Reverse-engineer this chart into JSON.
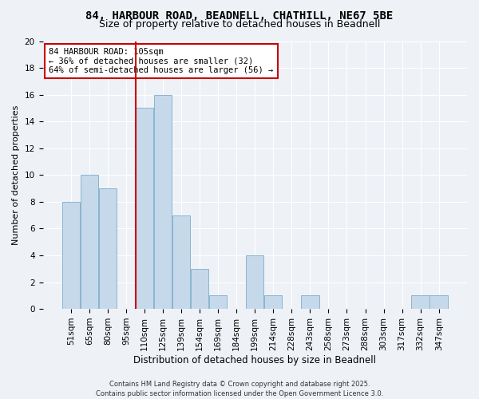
{
  "title": "84, HARBOUR ROAD, BEADNELL, CHATHILL, NE67 5BE",
  "subtitle": "Size of property relative to detached houses in Beadnell",
  "xlabel": "Distribution of detached houses by size in Beadnell",
  "ylabel": "Number of detached properties",
  "categories": [
    "51sqm",
    "65sqm",
    "80sqm",
    "95sqm",
    "110sqm",
    "125sqm",
    "139sqm",
    "154sqm",
    "169sqm",
    "184sqm",
    "199sqm",
    "214sqm",
    "228sqm",
    "243sqm",
    "258sqm",
    "273sqm",
    "288sqm",
    "303sqm",
    "317sqm",
    "332sqm",
    "347sqm"
  ],
  "values": [
    8,
    10,
    9,
    0,
    15,
    16,
    7,
    3,
    1,
    0,
    4,
    1,
    0,
    1,
    0,
    0,
    0,
    0,
    0,
    1,
    1
  ],
  "bar_color": "#c6d9ea",
  "bar_edge_color": "#8ab4d0",
  "vline_color": "#cc0000",
  "vline_position": 3.5,
  "annotation_text": "84 HARBOUR ROAD: 105sqm\n← 36% of detached houses are smaller (32)\n64% of semi-detached houses are larger (56) →",
  "annotation_box_color": "#ffffff",
  "annotation_box_edge_color": "#cc0000",
  "ylim": [
    0,
    20
  ],
  "yticks": [
    0,
    2,
    4,
    6,
    8,
    10,
    12,
    14,
    16,
    18,
    20
  ],
  "background_color": "#eef2f7",
  "grid_color": "#ffffff",
  "footer": "Contains HM Land Registry data © Crown copyright and database right 2025.\nContains public sector information licensed under the Open Government Licence 3.0.",
  "title_fontsize": 10,
  "subtitle_fontsize": 9,
  "xlabel_fontsize": 8.5,
  "ylabel_fontsize": 8,
  "tick_fontsize": 7.5,
  "annotation_fontsize": 7.5,
  "footer_fontsize": 6
}
